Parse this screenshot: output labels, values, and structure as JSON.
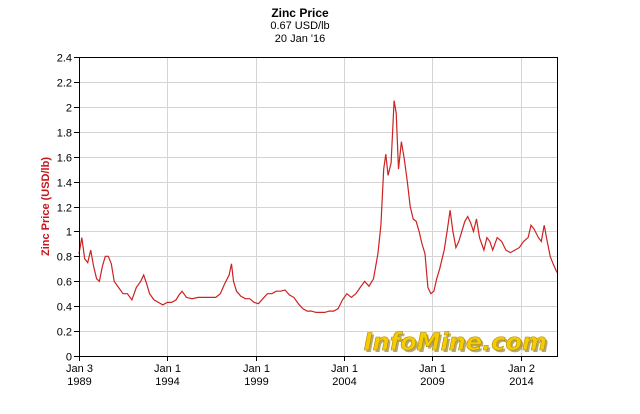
{
  "header": {
    "title": "Zinc Price",
    "current_value": "0.67 USD/lb",
    "date": "20 Jan '16"
  },
  "watermark": "InfoMine.com",
  "chart_data": {
    "type": "line",
    "title": "Zinc Price",
    "xlabel": "",
    "ylabel": "Zinc Price (USD/lb)",
    "xlim": [
      "1989-01-03",
      "2016-01-20"
    ],
    "ylim": [
      0,
      2.4
    ],
    "y_ticks": [
      0,
      0.2,
      0.4,
      0.6,
      0.8,
      1,
      1.2,
      1.4,
      1.6,
      1.8,
      2,
      2.2,
      2.4
    ],
    "y_tick_labels": [
      "0",
      "0.2",
      "0.4",
      "0.6",
      "0.8",
      "1",
      "1.2",
      "1.4",
      "1.6",
      "1.8",
      "2",
      "2.2",
      "2.4"
    ],
    "x_ticks": [
      {
        "date": "1989-01-03",
        "line1": "Jan 3",
        "line2": "1989"
      },
      {
        "date": "1994-01-01",
        "line1": "Jan 1",
        "line2": "1994"
      },
      {
        "date": "1999-01-01",
        "line1": "Jan 1",
        "line2": "1999"
      },
      {
        "date": "2004-01-01",
        "line1": "Jan 1",
        "line2": "2004"
      },
      {
        "date": "2009-01-01",
        "line1": "Jan 1",
        "line2": "2009"
      },
      {
        "date": "2014-01-02",
        "line1": "Jan 2",
        "line2": "2014"
      }
    ],
    "grid": true,
    "line_color": "#cc2222",
    "series": [
      {
        "values": [
          [
            "1989-01-03",
            0.82
          ],
          [
            "1989-03-01",
            0.95
          ],
          [
            "1989-05-01",
            0.78
          ],
          [
            "1989-07-01",
            0.75
          ],
          [
            "1989-09-01",
            0.85
          ],
          [
            "1989-11-01",
            0.72
          ],
          [
            "1990-01-01",
            0.62
          ],
          [
            "1990-03-01",
            0.6
          ],
          [
            "1990-05-01",
            0.72
          ],
          [
            "1990-07-01",
            0.8
          ],
          [
            "1990-09-01",
            0.8
          ],
          [
            "1990-11-01",
            0.74
          ],
          [
            "1991-01-01",
            0.6
          ],
          [
            "1991-04-01",
            0.55
          ],
          [
            "1991-07-01",
            0.5
          ],
          [
            "1991-10-01",
            0.5
          ],
          [
            "1992-01-01",
            0.45
          ],
          [
            "1992-04-01",
            0.55
          ],
          [
            "1992-07-01",
            0.6
          ],
          [
            "1992-09-01",
            0.65
          ],
          [
            "1992-11-01",
            0.58
          ],
          [
            "1993-01-01",
            0.5
          ],
          [
            "1993-04-01",
            0.45
          ],
          [
            "1993-07-01",
            0.43
          ],
          [
            "1993-10-01",
            0.41
          ],
          [
            "1994-01-01",
            0.43
          ],
          [
            "1994-04-01",
            0.43
          ],
          [
            "1994-07-01",
            0.45
          ],
          [
            "1994-09-01",
            0.49
          ],
          [
            "1994-11-01",
            0.52
          ],
          [
            "1995-02-01",
            0.47
          ],
          [
            "1995-06-01",
            0.46
          ],
          [
            "1995-10-01",
            0.47
          ],
          [
            "1996-02-01",
            0.47
          ],
          [
            "1996-06-01",
            0.47
          ],
          [
            "1996-10-01",
            0.47
          ],
          [
            "1997-01-01",
            0.5
          ],
          [
            "1997-04-01",
            0.58
          ],
          [
            "1997-07-01",
            0.65
          ],
          [
            "1997-08-20",
            0.74
          ],
          [
            "1997-10-01",
            0.6
          ],
          [
            "1997-12-01",
            0.52
          ],
          [
            "1998-03-01",
            0.48
          ],
          [
            "1998-06-01",
            0.46
          ],
          [
            "1998-09-01",
            0.46
          ],
          [
            "1998-12-01",
            0.43
          ],
          [
            "1999-03-01",
            0.42
          ],
          [
            "1999-06-01",
            0.46
          ],
          [
            "1999-09-01",
            0.5
          ],
          [
            "1999-12-01",
            0.5
          ],
          [
            "2000-03-01",
            0.52
          ],
          [
            "2000-06-01",
            0.52
          ],
          [
            "2000-09-01",
            0.53
          ],
          [
            "2000-12-01",
            0.49
          ],
          [
            "2001-03-01",
            0.47
          ],
          [
            "2001-06-01",
            0.42
          ],
          [
            "2001-09-01",
            0.38
          ],
          [
            "2001-12-01",
            0.36
          ],
          [
            "2002-03-01",
            0.36
          ],
          [
            "2002-06-01",
            0.35
          ],
          [
            "2002-09-01",
            0.35
          ],
          [
            "2002-12-01",
            0.35
          ],
          [
            "2003-03-01",
            0.36
          ],
          [
            "2003-06-01",
            0.36
          ],
          [
            "2003-09-01",
            0.38
          ],
          [
            "2003-12-01",
            0.45
          ],
          [
            "2004-03-01",
            0.5
          ],
          [
            "2004-06-01",
            0.47
          ],
          [
            "2004-09-01",
            0.5
          ],
          [
            "2004-12-01",
            0.55
          ],
          [
            "2005-03-01",
            0.6
          ],
          [
            "2005-06-01",
            0.56
          ],
          [
            "2005-09-01",
            0.62
          ],
          [
            "2005-12-01",
            0.82
          ],
          [
            "2006-02-01",
            1.05
          ],
          [
            "2006-04-01",
            1.5
          ],
          [
            "2006-05-15",
            1.62
          ],
          [
            "2006-07-01",
            1.45
          ],
          [
            "2006-09-01",
            1.55
          ],
          [
            "2006-11-01",
            2.05
          ],
          [
            "2006-12-15",
            1.95
          ],
          [
            "2007-02-01",
            1.5
          ],
          [
            "2007-04-01",
            1.72
          ],
          [
            "2007-06-01",
            1.58
          ],
          [
            "2007-08-01",
            1.4
          ],
          [
            "2007-10-01",
            1.2
          ],
          [
            "2007-12-01",
            1.1
          ],
          [
            "2008-02-01",
            1.08
          ],
          [
            "2008-04-01",
            1.0
          ],
          [
            "2008-06-01",
            0.9
          ],
          [
            "2008-08-01",
            0.82
          ],
          [
            "2008-10-01",
            0.55
          ],
          [
            "2008-12-01",
            0.5
          ],
          [
            "2009-02-01",
            0.52
          ],
          [
            "2009-04-01",
            0.62
          ],
          [
            "2009-06-01",
            0.7
          ],
          [
            "2009-09-01",
            0.85
          ],
          [
            "2009-11-01",
            1.0
          ],
          [
            "2010-01-01",
            1.17
          ],
          [
            "2010-03-01",
            1.0
          ],
          [
            "2010-05-01",
            0.87
          ],
          [
            "2010-07-01",
            0.92
          ],
          [
            "2010-09-01",
            1.0
          ],
          [
            "2010-11-01",
            1.08
          ],
          [
            "2011-01-01",
            1.12
          ],
          [
            "2011-03-01",
            1.07
          ],
          [
            "2011-05-01",
            1.0
          ],
          [
            "2011-07-01",
            1.1
          ],
          [
            "2011-09-01",
            0.95
          ],
          [
            "2011-12-01",
            0.85
          ],
          [
            "2012-02-01",
            0.95
          ],
          [
            "2012-04-01",
            0.92
          ],
          [
            "2012-06-01",
            0.85
          ],
          [
            "2012-09-01",
            0.95
          ],
          [
            "2012-12-01",
            0.92
          ],
          [
            "2013-03-01",
            0.85
          ],
          [
            "2013-06-01",
            0.83
          ],
          [
            "2013-09-01",
            0.85
          ],
          [
            "2013-12-01",
            0.87
          ],
          [
            "2014-03-01",
            0.92
          ],
          [
            "2014-06-01",
            0.95
          ],
          [
            "2014-08-01",
            1.05
          ],
          [
            "2014-10-01",
            1.02
          ],
          [
            "2015-01-01",
            0.95
          ],
          [
            "2015-03-01",
            0.92
          ],
          [
            "2015-05-01",
            1.05
          ],
          [
            "2015-07-01",
            0.92
          ],
          [
            "2015-09-01",
            0.8
          ],
          [
            "2015-11-01",
            0.74
          ],
          [
            "2016-01-20",
            0.67
          ]
        ]
      }
    ]
  }
}
